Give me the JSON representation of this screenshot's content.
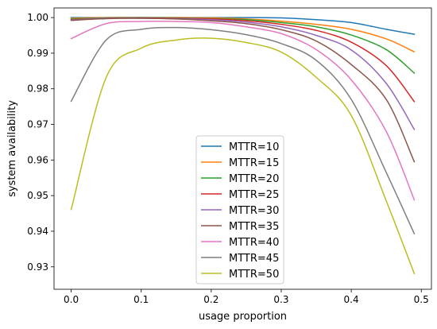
{
  "chart_data": {
    "type": "line",
    "title": "",
    "xlabel": "usage proportion",
    "ylabel": "system availability",
    "xlim": [
      -0.0245,
      0.5145
    ],
    "ylim": [
      0.9237,
      1.0027
    ],
    "xticks": [
      0.0,
      0.1,
      0.2,
      0.3,
      0.4,
      0.5
    ],
    "xtick_labels": [
      "0.0",
      "0.1",
      "0.2",
      "0.3",
      "0.4",
      "0.5"
    ],
    "yticks": [
      0.93,
      0.94,
      0.95,
      0.96,
      0.97,
      0.98,
      0.99,
      1.0
    ],
    "ytick_labels": [
      "0.93",
      "0.94",
      "0.95",
      "0.96",
      "0.97",
      "0.98",
      "0.99",
      "1.00"
    ],
    "grid": false,
    "legend_position": "lower-center",
    "x": [
      0.0,
      0.05,
      0.1,
      0.15,
      0.2,
      0.25,
      0.3,
      0.35,
      0.4,
      0.45,
      0.49
    ],
    "series": [
      {
        "name": "MTTR=10",
        "color": "#1f77b4",
        "values": [
          1.0,
          1.0,
          1.0,
          1.0,
          1.0,
          1.0,
          0.9999,
          0.9994,
          0.9986,
          0.9967,
          0.9953
        ]
      },
      {
        "name": "MTTR=15",
        "color": "#ff7f0e",
        "values": [
          0.9998,
          1.0,
          1.0,
          1.0,
          0.9999,
          0.9996,
          0.999,
          0.9981,
          0.9967,
          0.994,
          0.9904
        ]
      },
      {
        "name": "MTTR=20",
        "color": "#2ca02c",
        "values": [
          0.9996,
          0.9999,
          1.0,
          0.9999,
          0.9997,
          0.9994,
          0.9986,
          0.9974,
          0.9951,
          0.991,
          0.9844
        ]
      },
      {
        "name": "MTTR=25",
        "color": "#d62728",
        "values": [
          0.9994,
          0.9998,
          0.9999,
          0.9998,
          0.9996,
          0.9991,
          0.9981,
          0.9964,
          0.9931,
          0.9865,
          0.9764
        ]
      },
      {
        "name": "MTTR=30",
        "color": "#9467bd",
        "values": [
          0.9993,
          0.9998,
          0.9998,
          0.9997,
          0.9994,
          0.9987,
          0.9974,
          0.995,
          0.9909,
          0.9815,
          0.9686
        ]
      },
      {
        "name": "MTTR=35",
        "color": "#8c564b",
        "values": [
          0.9992,
          0.9997,
          0.9998,
          0.9996,
          0.9991,
          0.9983,
          0.9966,
          0.9934,
          0.9868,
          0.977,
          0.9595
        ]
      },
      {
        "name": "MTTR=40",
        "color": "#e377c2",
        "values": [
          0.9941,
          0.9983,
          0.9989,
          0.9989,
          0.9986,
          0.9974,
          0.9955,
          0.991,
          0.9825,
          0.968,
          0.9488
        ]
      },
      {
        "name": "MTTR=45",
        "color": "#7f7f7f",
        "values": [
          0.9765,
          0.9937,
          0.9967,
          0.9972,
          0.9966,
          0.9952,
          0.9927,
          0.988,
          0.977,
          0.9565,
          0.9393
        ]
      },
      {
        "name": "MTTR=50",
        "color": "#bcbd22",
        "values": [
          0.9461,
          0.9832,
          0.9914,
          0.9937,
          0.9942,
          0.993,
          0.9903,
          0.9832,
          0.9725,
          0.9485,
          0.9281
        ]
      }
    ]
  }
}
